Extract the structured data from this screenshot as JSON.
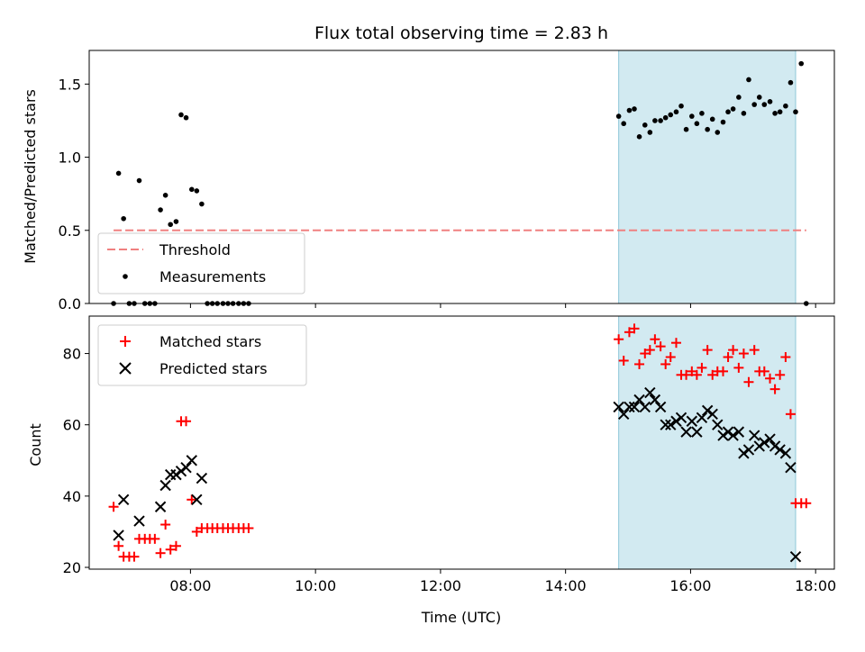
{
  "chart_data": [
    {
      "type": "scatter",
      "title": "Flux total observing time = 2.83 h",
      "ylabel": "Matched/Predicted stars",
      "ylim": [
        0,
        1.73
      ],
      "xlim": [
        6.38,
        18.3
      ],
      "yticks": [
        {
          "value": 0.0,
          "label": "0.0"
        },
        {
          "value": 0.5,
          "label": "0.5"
        },
        {
          "value": 1.0,
          "label": "1.0"
        },
        {
          "value": 1.5,
          "label": "1.5"
        }
      ],
      "shaded_region": {
        "x_start": 14.85,
        "x_end": 17.68,
        "color": "#add8e6"
      },
      "threshold": {
        "name": "Threshold",
        "value": 0.5,
        "color": "#f08080"
      },
      "legend": {
        "placement": "lower-left",
        "entries": [
          "Threshold",
          "Measurements"
        ]
      },
      "series": [
        {
          "name": "Measurements",
          "color": "#000000",
          "x": [
            6.77,
            6.85,
            6.93,
            7.02,
            7.1,
            7.18,
            7.27,
            7.35,
            7.43,
            7.52,
            7.6,
            7.68,
            7.77,
            7.85,
            7.93,
            8.02,
            8.1,
            8.18,
            8.27,
            8.35,
            8.43,
            8.52,
            8.6,
            8.68,
            8.77,
            8.85,
            8.93,
            14.85,
            14.93,
            15.02,
            15.1,
            15.18,
            15.27,
            15.35,
            15.43,
            15.52,
            15.6,
            15.68,
            15.77,
            15.85,
            15.93,
            16.02,
            16.1,
            16.18,
            16.27,
            16.35,
            16.43,
            16.52,
            16.6,
            16.68,
            16.77,
            16.85,
            16.93,
            17.02,
            17.1,
            17.18,
            17.27,
            17.35,
            17.43,
            17.52,
            17.6,
            17.68,
            17.77
          ],
          "y": [
            0.0,
            0.89,
            0.58,
            0.0,
            0.0,
            0.84,
            0.0,
            0.0,
            0.0,
            0.64,
            0.74,
            0.54,
            0.56,
            1.29,
            1.27,
            0.78,
            0.77,
            0.68,
            0.0,
            0.0,
            0.0,
            0.0,
            0.0,
            0.0,
            0.0,
            0.0,
            0.0,
            1.28,
            1.23,
            1.32,
            1.33,
            1.14,
            1.22,
            1.17,
            1.25,
            1.25,
            1.27,
            1.29,
            1.31,
            1.35,
            1.19,
            1.28,
            1.23,
            1.3,
            1.19,
            1.26,
            1.17,
            1.24,
            1.31,
            1.33,
            1.41,
            1.3,
            1.53,
            1.36,
            1.41,
            1.36,
            1.38,
            1.3,
            1.31,
            1.35,
            1.51,
            1.31,
            1.64
          ]
        }
      ],
      "extra_points": [
        {
          "x": 17.85,
          "y": 0.0
        }
      ]
    },
    {
      "type": "scatter",
      "xlabel": "Time (UTC)",
      "ylabel": "Count",
      "ylim": [
        19.5,
        90.5
      ],
      "xlim": [
        6.38,
        18.3
      ],
      "yticks": [
        {
          "value": 20,
          "label": "20"
        },
        {
          "value": 40,
          "label": "40"
        },
        {
          "value": 60,
          "label": "60"
        },
        {
          "value": 80,
          "label": "80"
        }
      ],
      "xticks": [
        {
          "value": 8,
          "label": "08:00"
        },
        {
          "value": 10,
          "label": "10:00"
        },
        {
          "value": 12,
          "label": "12:00"
        },
        {
          "value": 14,
          "label": "14:00"
        },
        {
          "value": 16,
          "label": "16:00"
        },
        {
          "value": 18,
          "label": "18:00"
        }
      ],
      "shaded_region": {
        "x_start": 14.85,
        "x_end": 17.68,
        "color": "#add8e6"
      },
      "legend": {
        "placement": "upper-left",
        "entries": [
          "Matched stars",
          "Predicted stars"
        ]
      },
      "series": [
        {
          "name": "Matched stars",
          "marker": "plus",
          "color": "#ff0000",
          "x": [
            6.77,
            6.85,
            6.93,
            7.02,
            7.1,
            7.18,
            7.27,
            7.35,
            7.43,
            7.52,
            7.6,
            7.68,
            7.77,
            7.85,
            7.93,
            8.02,
            8.1,
            8.18,
            8.27,
            8.35,
            8.43,
            8.52,
            8.6,
            8.68,
            8.77,
            8.85,
            8.93,
            14.85,
            14.93,
            15.02,
            15.1,
            15.18,
            15.27,
            15.35,
            15.43,
            15.52,
            15.6,
            15.68,
            15.77,
            15.85,
            15.93,
            16.02,
            16.1,
            16.18,
            16.27,
            16.35,
            16.43,
            16.52,
            16.6,
            16.68,
            16.77,
            16.85,
            16.93,
            17.02,
            17.1,
            17.18,
            17.27,
            17.35,
            17.43,
            17.52,
            17.6,
            17.68,
            17.77,
            17.85
          ],
          "y": [
            37,
            26,
            23,
            23,
            23,
            28,
            28,
            28,
            28,
            24,
            32,
            25,
            26,
            61,
            61,
            39,
            30,
            31,
            31,
            31,
            31,
            31,
            31,
            31,
            31,
            31,
            31,
            84,
            78,
            86,
            87,
            77,
            80,
            81,
            84,
            82,
            77,
            79,
            83,
            74,
            74,
            75,
            74,
            76,
            81,
            74,
            75,
            75,
            79,
            81,
            76,
            80,
            72,
            81,
            75,
            75,
            73,
            70,
            74,
            79,
            63,
            38,
            38,
            38
          ]
        },
        {
          "name": "Predicted stars",
          "marker": "x",
          "color": "#000000",
          "x": [
            6.85,
            6.93,
            7.18,
            7.52,
            7.6,
            7.68,
            7.77,
            7.85,
            7.93,
            8.02,
            8.1,
            8.18,
            14.85,
            14.93,
            15.02,
            15.1,
            15.18,
            15.27,
            15.35,
            15.43,
            15.52,
            15.6,
            15.68,
            15.77,
            15.85,
            15.93,
            16.02,
            16.1,
            16.18,
            16.27,
            16.35,
            16.43,
            16.52,
            16.6,
            16.68,
            16.77,
            16.85,
            16.93,
            17.02,
            17.1,
            17.18,
            17.27,
            17.35,
            17.43,
            17.52,
            17.6,
            17.68
          ],
          "y": [
            29,
            39,
            33,
            37,
            43,
            46,
            46,
            47,
            48,
            50,
            39,
            45,
            65,
            63,
            65,
            65,
            67,
            65,
            69,
            67,
            65,
            60,
            60,
            61,
            62,
            58,
            61,
            58,
            62,
            64,
            63,
            60,
            57,
            58,
            57,
            58,
            52,
            53,
            57,
            54,
            55,
            56,
            54,
            53,
            52,
            48,
            23
          ]
        }
      ]
    }
  ]
}
